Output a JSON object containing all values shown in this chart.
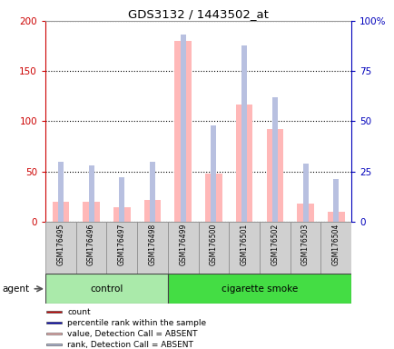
{
  "title": "GDS3132 / 1443502_at",
  "samples": [
    "GSM176495",
    "GSM176496",
    "GSM176497",
    "GSM176498",
    "GSM176499",
    "GSM176500",
    "GSM176501",
    "GSM176502",
    "GSM176503",
    "GSM176504"
  ],
  "n_control": 4,
  "value_absent": [
    20,
    20,
    14,
    22,
    180,
    48,
    117,
    92,
    18,
    10
  ],
  "rank_absent": [
    30,
    28,
    22,
    30,
    93,
    48,
    88,
    62,
    29,
    21
  ],
  "ylim_left": [
    0,
    200
  ],
  "ylim_right": [
    0,
    100
  ],
  "yticks_left": [
    0,
    50,
    100,
    150,
    200
  ],
  "yticks_right": [
    0,
    25,
    50,
    75,
    100
  ],
  "yticklabels_right": [
    "0",
    "25",
    "50",
    "75",
    "100%"
  ],
  "color_value_absent": "#ffb8b8",
  "color_rank_absent": "#b8c0e0",
  "color_count": "#cc0000",
  "color_rank": "#0000bb",
  "bg_xticklabel": "#d0d0d0",
  "green_control": "#aaeaaa",
  "green_smoke": "#44dd44",
  "left_axis_color": "#cc0000",
  "right_axis_color": "#0000bb",
  "pink_bar_width": 0.55,
  "blue_bar_width": 0.18
}
